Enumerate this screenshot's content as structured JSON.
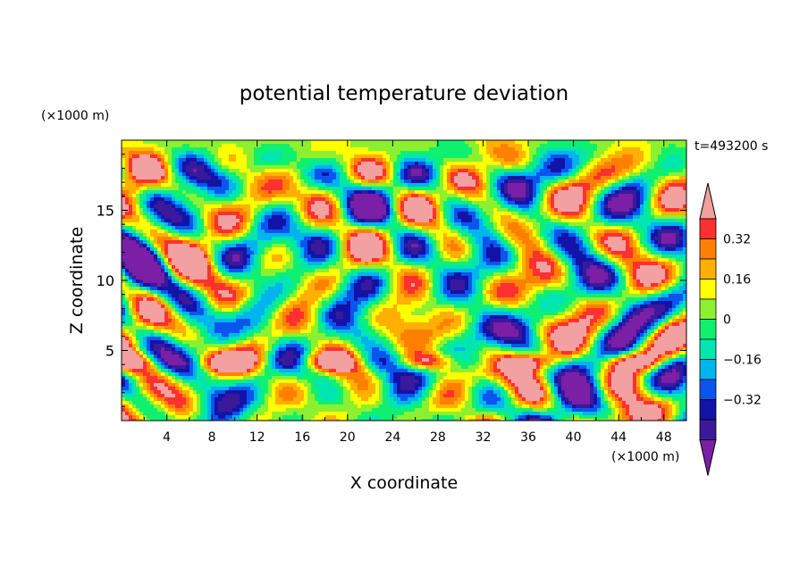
{
  "chart_data": {
    "type": "heatmap",
    "title": "potential temperature deviation",
    "xlabel": "X coordinate",
    "ylabel": "Z coordinate",
    "x_units": "(×1000 m)",
    "z_units": "(×1000 m)",
    "time_label": "t=493200 s",
    "xlim": [
      0,
      50
    ],
    "zlim": [
      0,
      20
    ],
    "x_ticks": [
      4,
      8,
      12,
      16,
      20,
      24,
      28,
      32,
      36,
      40,
      44,
      48
    ],
    "z_ticks": [
      5,
      10,
      15
    ],
    "colorbar": {
      "levels": [
        -0.48,
        -0.4,
        -0.32,
        -0.24,
        -0.16,
        -0.08,
        0,
        0.08,
        0.16,
        0.24,
        0.32,
        0.4,
        0.48
      ],
      "labeled_levels": [
        0.32,
        0.16,
        0,
        -0.16,
        -0.32
      ],
      "labels": [
        "0.32",
        "0.16",
        "0",
        "−0.16",
        "−0.32"
      ],
      "colors": [
        "#7a1fa6",
        "#3a1a9a",
        "#1313a8",
        "#0b55ee",
        "#00b4ee",
        "#00e6b0",
        "#10f070",
        "#8cf030",
        "#ffff00",
        "#ffb000",
        "#ff8000",
        "#ff3030",
        "#f2a0a0"
      ]
    }
  }
}
